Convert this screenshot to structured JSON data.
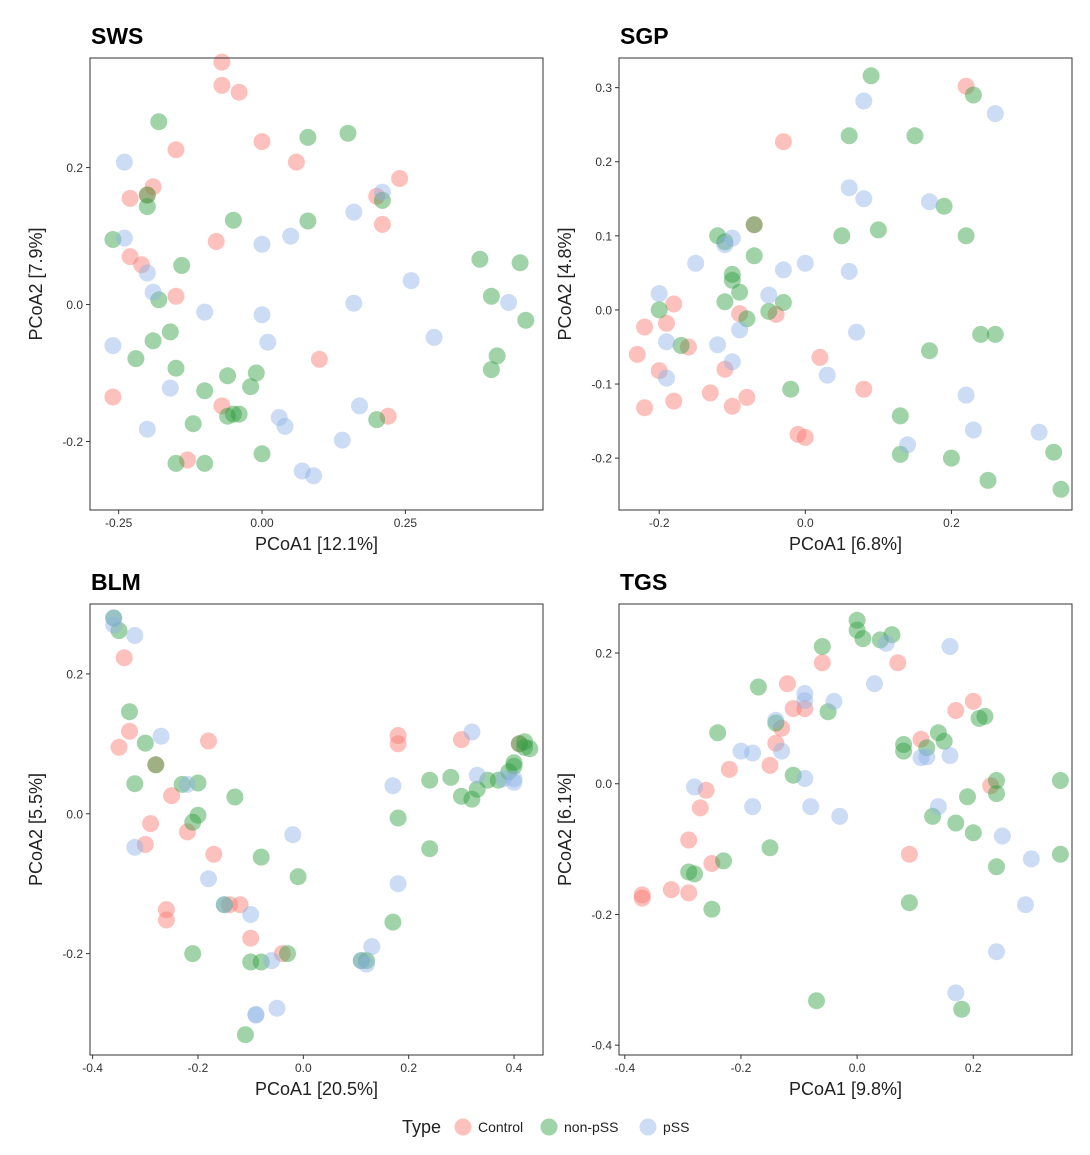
{
  "colors": {
    "Control": "#F8766D",
    "non-pSS": "#2E9E3E",
    "pSS": "#8FB2E6"
  },
  "legend": {
    "title": "Type",
    "entries": [
      "Control",
      "non-pSS",
      "pSS"
    ]
  },
  "chart_data": [
    {
      "type": "scatter",
      "title": "SWS",
      "xlabel": "PCoA1 [12.1%]",
      "ylabel": "PCoA2 [7.9%]",
      "xlim": [
        -0.3,
        0.49
      ],
      "ylim": [
        -0.3,
        0.36
      ],
      "xticks": [
        -0.25,
        0.0,
        0.25
      ],
      "xtick_labels": [
        "-0.25",
        "0.00",
        "0.25"
      ],
      "yticks": [
        -0.2,
        0.0,
        0.2
      ],
      "ytick_labels": [
        "-0.2",
        "0.0",
        "0.2"
      ],
      "series": [
        {
          "name": "Control",
          "x": [
            -0.26,
            -0.23,
            -0.23,
            -0.21,
            -0.2,
            -0.19,
            -0.15,
            -0.15,
            -0.13,
            -0.08,
            -0.07,
            -0.07,
            -0.07,
            -0.04,
            0.0,
            0.06,
            0.1,
            0.2,
            0.21,
            0.22,
            0.24
          ],
          "y": [
            -0.135,
            0.155,
            0.07,
            0.058,
            0.16,
            0.172,
            0.012,
            0.226,
            -0.227,
            0.092,
            0.354,
            0.32,
            -0.148,
            0.31,
            0.238,
            0.208,
            -0.08,
            0.158,
            0.117,
            -0.163,
            0.184
          ]
        },
        {
          "name": "non-pSS",
          "x": [
            -0.26,
            -0.22,
            -0.2,
            -0.2,
            -0.19,
            -0.18,
            -0.18,
            -0.16,
            -0.15,
            -0.15,
            -0.14,
            -0.12,
            -0.1,
            -0.1,
            -0.06,
            -0.06,
            -0.05,
            -0.05,
            -0.04,
            -0.02,
            -0.01,
            0.0,
            0.08,
            0.08,
            0.15,
            0.2,
            0.21,
            0.38,
            0.4,
            0.41,
            0.4,
            0.45,
            0.46
          ],
          "y": [
            0.095,
            -0.079,
            0.16,
            0.143,
            -0.053,
            0.007,
            0.267,
            -0.04,
            -0.232,
            -0.093,
            0.057,
            -0.174,
            -0.232,
            -0.126,
            -0.104,
            -0.163,
            -0.16,
            0.123,
            -0.16,
            -0.12,
            -0.1,
            -0.218,
            0.244,
            0.122,
            0.25,
            -0.168,
            0.152,
            0.066,
            0.012,
            -0.075,
            -0.095,
            0.061,
            -0.023
          ]
        },
        {
          "name": "pSS",
          "x": [
            -0.26,
            -0.24,
            -0.24,
            -0.2,
            -0.2,
            -0.19,
            -0.16,
            -0.1,
            0.0,
            0.0,
            0.01,
            0.03,
            0.04,
            0.05,
            0.07,
            0.09,
            0.14,
            0.16,
            0.16,
            0.17,
            0.21,
            0.26,
            0.3,
            0.43
          ],
          "y": [
            -0.06,
            0.208,
            0.097,
            0.046,
            -0.182,
            0.018,
            -0.122,
            -0.011,
            0.088,
            -0.015,
            -0.055,
            -0.165,
            -0.178,
            0.1,
            -0.243,
            -0.25,
            -0.198,
            0.002,
            0.135,
            -0.148,
            0.164,
            0.035,
            -0.048,
            0.003
          ]
        }
      ]
    },
    {
      "type": "scatter",
      "title": "SGP",
      "xlabel": "PCoA1 [6.8%]",
      "ylabel": "PCoA2 [4.8%]",
      "xlim": [
        -0.255,
        0.365
      ],
      "ylim": [
        -0.27,
        0.34
      ],
      "xticks": [
        -0.2,
        0.0,
        0.2
      ],
      "xtick_labels": [
        "-0.2",
        "0.0",
        "0.2"
      ],
      "yticks": [
        -0.2,
        -0.1,
        0.0,
        0.1,
        0.2,
        0.3
      ],
      "ytick_labels": [
        "-0.2",
        "-0.1",
        "0.0",
        "0.1",
        "0.2",
        "0.3"
      ],
      "series": [
        {
          "name": "Control",
          "x": [
            -0.23,
            -0.22,
            -0.22,
            -0.2,
            -0.19,
            -0.18,
            -0.18,
            -0.16,
            -0.13,
            -0.11,
            -0.1,
            -0.09,
            -0.08,
            -0.07,
            -0.04,
            -0.03,
            -0.01,
            0.0,
            0.02,
            0.08,
            0.22
          ],
          "y": [
            -0.06,
            -0.023,
            -0.132,
            -0.082,
            -0.018,
            0.008,
            -0.123,
            -0.05,
            -0.112,
            -0.08,
            -0.13,
            -0.005,
            -0.118,
            0.115,
            -0.006,
            0.227,
            -0.168,
            -0.172,
            -0.064,
            -0.107,
            0.302
          ]
        },
        {
          "name": "non-pSS",
          "x": [
            -0.2,
            -0.17,
            -0.12,
            -0.11,
            -0.11,
            -0.1,
            -0.1,
            -0.09,
            -0.08,
            -0.07,
            -0.07,
            -0.05,
            -0.03,
            -0.02,
            0.05,
            0.06,
            0.09,
            0.1,
            0.13,
            0.13,
            0.15,
            0.17,
            0.19,
            0.2,
            0.22,
            0.23,
            0.24,
            0.25,
            0.26,
            0.34,
            0.35
          ],
          "y": [
            0.0,
            -0.048,
            0.1,
            0.092,
            0.011,
            0.04,
            0.048,
            0.024,
            -0.012,
            0.073,
            0.115,
            -0.002,
            0.01,
            -0.107,
            0.1,
            0.235,
            0.316,
            0.108,
            -0.143,
            -0.195,
            0.235,
            -0.055,
            0.14,
            -0.2,
            0.1,
            0.29,
            -0.033,
            -0.23,
            -0.033,
            -0.192,
            -0.242
          ]
        },
        {
          "name": "pSS",
          "x": [
            -0.2,
            -0.19,
            -0.19,
            -0.15,
            -0.12,
            -0.11,
            -0.1,
            -0.1,
            -0.09,
            -0.05,
            -0.03,
            0.0,
            0.03,
            0.06,
            0.06,
            0.07,
            0.08,
            0.08,
            0.14,
            0.17,
            0.22,
            0.23,
            0.26,
            0.32
          ],
          "y": [
            0.022,
            -0.043,
            -0.092,
            0.063,
            -0.047,
            0.088,
            -0.07,
            0.097,
            -0.027,
            0.02,
            0.054,
            0.063,
            -0.088,
            0.165,
            0.052,
            -0.03,
            0.15,
            0.282,
            -0.182,
            0.146,
            -0.115,
            -0.162,
            0.265,
            -0.165
          ]
        }
      ]
    },
    {
      "type": "scatter",
      "title": "BLM",
      "xlabel": "PCoA1 [20.5%]",
      "ylabel": "PCoA2 [5.5%]",
      "xlim": [
        -0.405,
        0.455
      ],
      "ylim": [
        -0.345,
        0.3
      ],
      "xticks": [
        -0.4,
        -0.2,
        0.0,
        0.2,
        0.4
      ],
      "xtick_labels": [
        "-0.4",
        "-0.2",
        "0.0",
        "0.2",
        "0.4"
      ],
      "yticks": [
        -0.2,
        0.0,
        0.2
      ],
      "ytick_labels": [
        "-0.2",
        "0.0",
        "0.2"
      ],
      "series": [
        {
          "name": "Control",
          "x": [
            -0.35,
            -0.34,
            -0.33,
            -0.3,
            -0.29,
            -0.28,
            -0.26,
            -0.26,
            -0.25,
            -0.22,
            -0.18,
            -0.17,
            -0.14,
            -0.12,
            -0.1,
            -0.04,
            0.18,
            0.18,
            0.3,
            0.41
          ],
          "y": [
            0.095,
            0.223,
            0.118,
            -0.044,
            -0.014,
            0.07,
            -0.137,
            -0.152,
            0.026,
            -0.026,
            0.104,
            -0.058,
            -0.13,
            -0.13,
            -0.178,
            -0.2,
            0.112,
            0.1,
            0.106,
            0.1
          ]
        },
        {
          "name": "non-pSS",
          "x": [
            -0.36,
            -0.35,
            -0.33,
            -0.32,
            -0.3,
            -0.28,
            -0.21,
            -0.21,
            -0.2,
            -0.2,
            -0.23,
            -0.15,
            -0.13,
            -0.11,
            -0.1,
            -0.08,
            -0.08,
            -0.03,
            -0.01,
            0.11,
            0.12,
            0.17,
            0.18,
            0.24,
            0.24,
            0.28,
            0.3,
            0.32,
            0.33,
            0.35,
            0.37,
            0.39,
            0.4,
            0.4,
            0.41,
            0.42,
            0.42,
            0.43
          ],
          "y": [
            0.28,
            0.262,
            0.146,
            0.043,
            0.101,
            0.07,
            -0.012,
            -0.2,
            0.044,
            -0.002,
            0.042,
            -0.13,
            0.024,
            -0.316,
            -0.212,
            -0.212,
            -0.062,
            -0.2,
            -0.09,
            -0.21,
            -0.21,
            -0.155,
            -0.006,
            0.048,
            -0.05,
            0.052,
            0.025,
            0.021,
            0.035,
            0.048,
            0.048,
            0.06,
            0.068,
            0.073,
            0.1,
            0.103,
            0.095,
            0.093
          ]
        },
        {
          "name": "pSS",
          "x": [
            -0.36,
            -0.36,
            -0.32,
            -0.32,
            -0.27,
            -0.22,
            -0.18,
            -0.15,
            -0.1,
            -0.09,
            -0.09,
            -0.06,
            -0.05,
            -0.02,
            0.11,
            0.12,
            0.13,
            0.17,
            0.18,
            0.32,
            0.33,
            0.38,
            0.4,
            0.4
          ],
          "y": [
            0.28,
            0.27,
            0.255,
            -0.048,
            0.111,
            0.042,
            -0.093,
            -0.13,
            -0.144,
            -0.287,
            -0.288,
            -0.21,
            -0.278,
            -0.03,
            -0.21,
            -0.215,
            -0.19,
            0.04,
            -0.1,
            0.117,
            0.055,
            0.05,
            0.045,
            0.05
          ]
        }
      ]
    },
    {
      "type": "scatter",
      "title": "TGS",
      "xlabel": "PCoA1 [9.8%]",
      "ylabel": "PCoA2 [6.1%]",
      "xlim": [
        -0.41,
        0.37
      ],
      "ylim": [
        -0.415,
        0.275
      ],
      "xticks": [
        -0.4,
        -0.2,
        0.0,
        0.2
      ],
      "xtick_labels": [
        "-0.4",
        "-0.2",
        "0.0",
        "0.2"
      ],
      "yticks": [
        -0.4,
        -0.2,
        0.0,
        0.2
      ],
      "ytick_labels": [
        "-0.4",
        "-0.2",
        "0.0",
        "0.2"
      ],
      "series": [
        {
          "name": "Control",
          "x": [
            -0.37,
            -0.37,
            -0.32,
            -0.29,
            -0.29,
            -0.27,
            -0.26,
            -0.25,
            -0.22,
            -0.15,
            -0.14,
            -0.13,
            -0.12,
            -0.11,
            -0.06,
            -0.09,
            0.07,
            0.09,
            0.11,
            0.17,
            0.2,
            0.23
          ],
          "y": [
            -0.175,
            -0.17,
            -0.162,
            -0.167,
            -0.086,
            -0.037,
            -0.01,
            -0.122,
            0.022,
            0.028,
            0.062,
            0.085,
            0.153,
            0.115,
            0.185,
            0.115,
            0.185,
            -0.108,
            0.068,
            0.112,
            0.126,
            -0.003
          ]
        },
        {
          "name": "non-pSS",
          "x": [
            -0.29,
            -0.28,
            -0.25,
            -0.24,
            -0.23,
            -0.17,
            -0.15,
            -0.14,
            -0.11,
            -0.07,
            -0.06,
            -0.05,
            0.0,
            0.0,
            0.01,
            0.04,
            0.06,
            0.08,
            0.08,
            0.09,
            0.12,
            0.13,
            0.14,
            0.15,
            0.17,
            0.18,
            0.19,
            0.2,
            0.21,
            0.22,
            0.24,
            0.24,
            0.24,
            0.35,
            0.35
          ],
          "y": [
            -0.135,
            -0.138,
            -0.192,
            0.078,
            -0.118,
            0.148,
            -0.098,
            0.093,
            0.013,
            -0.332,
            0.21,
            0.11,
            0.25,
            0.235,
            0.222,
            0.22,
            0.228,
            0.05,
            0.06,
            -0.182,
            0.055,
            -0.05,
            0.078,
            0.065,
            -0.06,
            -0.345,
            -0.02,
            -0.075,
            0.1,
            0.103,
            -0.127,
            -0.015,
            0.005,
            0.005,
            -0.108
          ]
        },
        {
          "name": "pSS",
          "x": [
            -0.28,
            -0.2,
            -0.18,
            -0.18,
            -0.14,
            -0.13,
            -0.09,
            -0.09,
            -0.09,
            -0.08,
            -0.04,
            -0.03,
            0.03,
            0.05,
            0.11,
            0.12,
            0.14,
            0.16,
            0.16,
            0.17,
            0.24,
            0.25,
            0.29,
            0.3
          ],
          "y": [
            -0.005,
            0.05,
            0.047,
            -0.035,
            0.097,
            0.05,
            0.138,
            0.127,
            0.008,
            -0.035,
            0.126,
            -0.05,
            0.153,
            0.215,
            0.04,
            0.041,
            -0.035,
            0.21,
            0.043,
            -0.32,
            -0.257,
            -0.08,
            -0.185,
            -0.115
          ]
        }
      ]
    }
  ]
}
